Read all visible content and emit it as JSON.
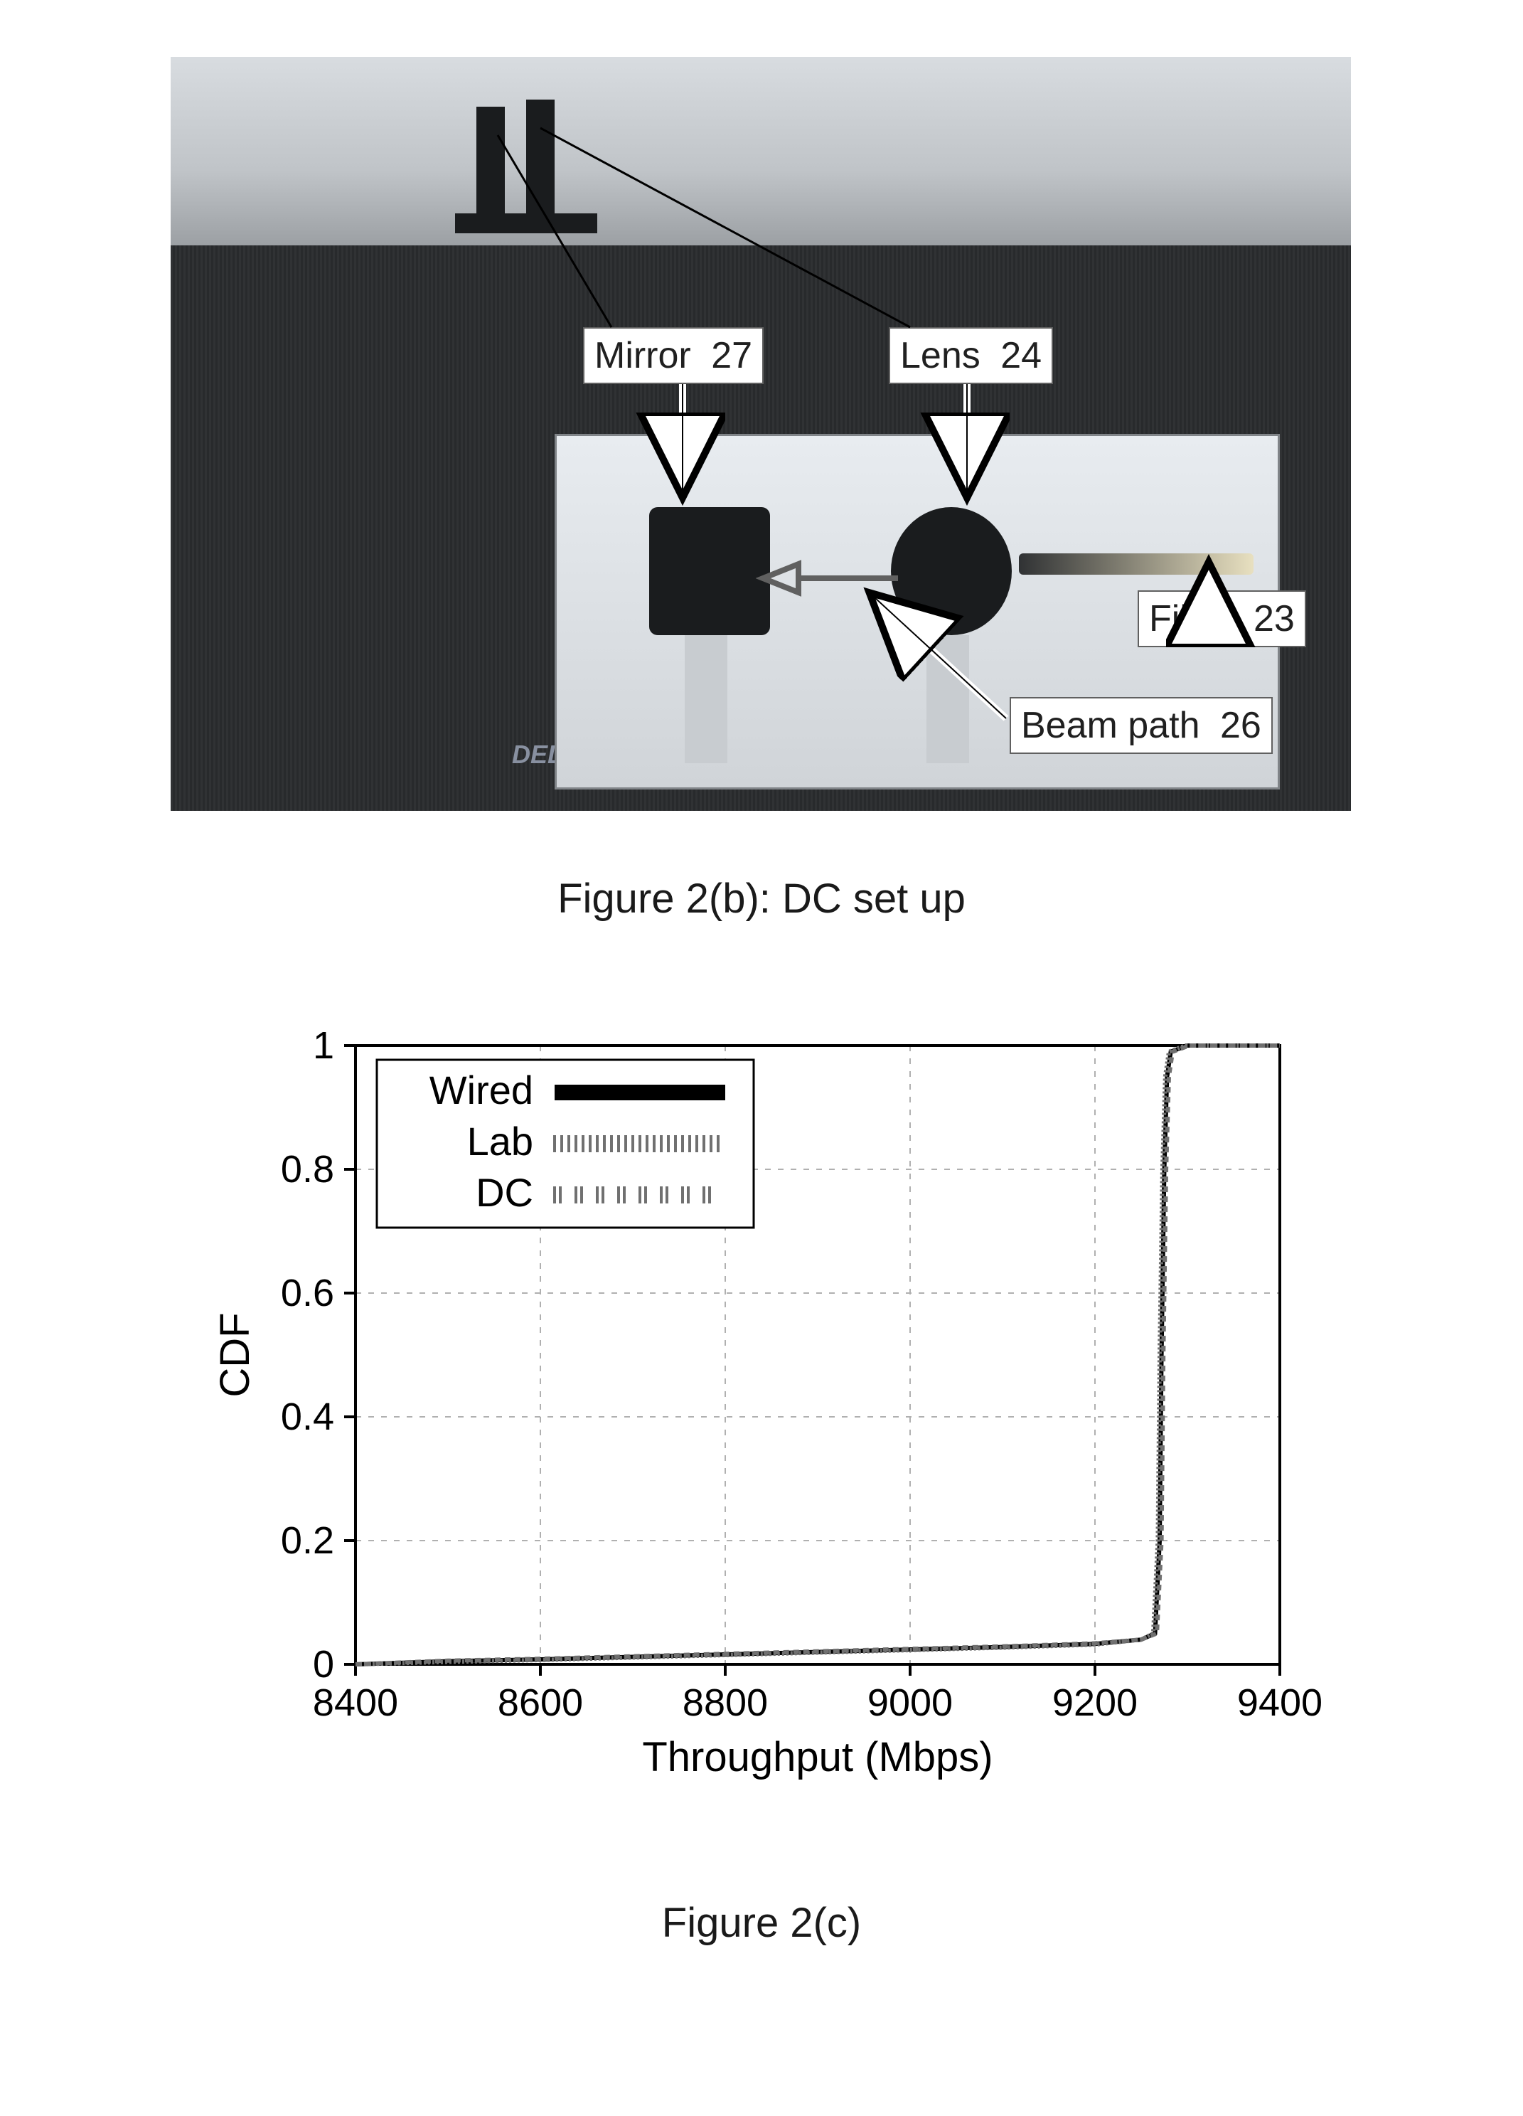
{
  "figure_b": {
    "caption": "Figure 2(b): DC set up",
    "annotations": {
      "mirror": {
        "label": "Mirror",
        "num": "27"
      },
      "lens": {
        "label": "Lens",
        "num": "24"
      },
      "fiber": {
        "label": "Fiber",
        "num": "23"
      },
      "beam_path": {
        "label": "Beam path",
        "num": "26"
      }
    },
    "logo_text": "DELL",
    "colors": {
      "annotation_bg": "#ffffff",
      "annotation_border": "#606060",
      "annotation_text": "#202020",
      "arrow_color": "#ffffff",
      "arrow_stroke": "#000000"
    }
  },
  "figure_c": {
    "caption": "Figure 2(c)",
    "chart": {
      "type": "line",
      "xlabel": "Throughput (Mbps)",
      "ylabel": "CDF",
      "xlim": [
        8400,
        9400
      ],
      "ylim": [
        0,
        1
      ],
      "xticks": [
        8400,
        8600,
        8800,
        9000,
        9200,
        9400
      ],
      "yticks": [
        0,
        0.2,
        0.4,
        0.6,
        0.8,
        1
      ],
      "label_fontsize": 58,
      "tick_fontsize": 54,
      "grid_color": "#b0b0b0",
      "axis_color": "#000000",
      "background_color": "#ffffff",
      "legend": {
        "position": "top-left",
        "entries": [
          {
            "label": "Wired",
            "pattern": "solid",
            "color": "#000000"
          },
          {
            "label": "Lab",
            "pattern": "dense-ticks",
            "color": "#707070"
          },
          {
            "label": "DC",
            "pattern": "spaced-double-ticks",
            "color": "#707070"
          }
        ]
      },
      "series": [
        {
          "name": "Wired",
          "color": "#000000",
          "stroke_width": 6,
          "dash": "none",
          "points": [
            [
              8400,
              0.0
            ],
            [
              8500,
              0.005
            ],
            [
              8600,
              0.008
            ],
            [
              8700,
              0.012
            ],
            [
              8800,
              0.016
            ],
            [
              8900,
              0.02
            ],
            [
              9000,
              0.024
            ],
            [
              9100,
              0.028
            ],
            [
              9200,
              0.033
            ],
            [
              9250,
              0.04
            ],
            [
              9265,
              0.05
            ],
            [
              9270,
              0.2
            ],
            [
              9272,
              0.5
            ],
            [
              9275,
              0.8
            ],
            [
              9278,
              0.95
            ],
            [
              9282,
              0.99
            ],
            [
              9300,
              1.0
            ],
            [
              9400,
              1.0
            ]
          ]
        },
        {
          "name": "Lab",
          "color": "#707070",
          "stroke_width": 6,
          "dash": "3,3",
          "points": [
            [
              8400,
              0.0
            ],
            [
              8500,
              0.004
            ],
            [
              8600,
              0.007
            ],
            [
              8700,
              0.011
            ],
            [
              8800,
              0.015
            ],
            [
              8900,
              0.019
            ],
            [
              9000,
              0.023
            ],
            [
              9100,
              0.027
            ],
            [
              9200,
              0.032
            ],
            [
              9250,
              0.04
            ],
            [
              9263,
              0.05
            ],
            [
              9268,
              0.2
            ],
            [
              9270,
              0.5
            ],
            [
              9273,
              0.8
            ],
            [
              9276,
              0.95
            ],
            [
              9280,
              0.99
            ],
            [
              9298,
              1.0
            ],
            [
              9400,
              1.0
            ]
          ]
        },
        {
          "name": "DC",
          "color": "#707070",
          "stroke_width": 6,
          "dash": "8,6",
          "points": [
            [
              8400,
              0.0
            ],
            [
              8500,
              0.006
            ],
            [
              8600,
              0.009
            ],
            [
              8700,
              0.013
            ],
            [
              8800,
              0.017
            ],
            [
              8900,
              0.021
            ],
            [
              9000,
              0.025
            ],
            [
              9100,
              0.029
            ],
            [
              9200,
              0.034
            ],
            [
              9250,
              0.04
            ],
            [
              9267,
              0.05
            ],
            [
              9272,
              0.2
            ],
            [
              9274,
              0.5
            ],
            [
              9277,
              0.8
            ],
            [
              9280,
              0.95
            ],
            [
              9284,
              0.99
            ],
            [
              9302,
              1.0
            ],
            [
              9400,
              1.0
            ]
          ]
        }
      ]
    }
  }
}
